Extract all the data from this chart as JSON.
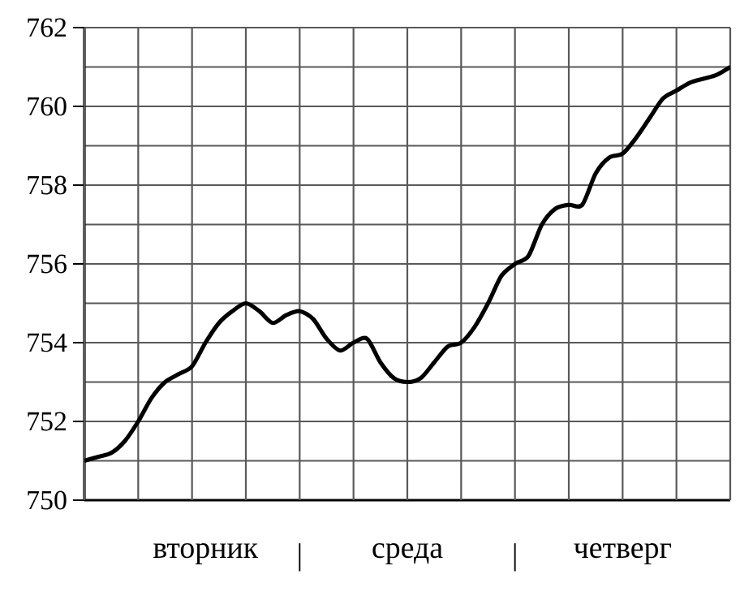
{
  "chart_data": {
    "type": "line",
    "categories": [
      null,
      null,
      null,
      null,
      null,
      null,
      null,
      null,
      null,
      "вторник",
      null,
      null,
      null,
      null,
      null,
      null,
      "|",
      null,
      null,
      null,
      null,
      null,
      null,
      null,
      "среда",
      null,
      null,
      null,
      null,
      null,
      null,
      null,
      "|",
      null,
      null,
      null,
      null,
      null,
      null,
      null,
      "четверг",
      null,
      null,
      null,
      null,
      null,
      null,
      null,
      null
    ],
    "values": [
      751.0,
      751.1,
      751.2,
      751.5,
      752.0,
      752.6,
      753.0,
      753.2,
      753.4,
      754.0,
      754.5,
      754.8,
      755.0,
      754.8,
      754.5,
      754.7,
      754.8,
      754.6,
      754.1,
      753.8,
      754.0,
      754.1,
      753.5,
      753.1,
      753.0,
      753.1,
      753.5,
      753.9,
      754.0,
      754.4,
      755.0,
      755.7,
      756.0,
      756.2,
      757.0,
      757.4,
      757.5,
      757.5,
      758.3,
      758.7,
      758.8,
      759.2,
      759.7,
      760.2,
      760.4,
      760.6,
      760.7,
      760.8,
      761.0
    ],
    "color": "#000000",
    "ylim": [
      750,
      762
    ],
    "yticks": [
      750,
      752,
      754,
      756,
      758,
      760,
      762
    ],
    "grid": true
  }
}
